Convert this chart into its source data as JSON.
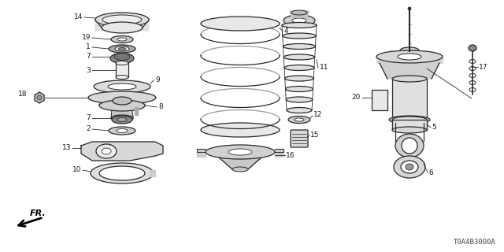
{
  "bg_color": "#ffffff",
  "line_color": "#2a2a2a",
  "label_color": "#1a1a1a",
  "diagram_code_text": "T0A4B3000A"
}
